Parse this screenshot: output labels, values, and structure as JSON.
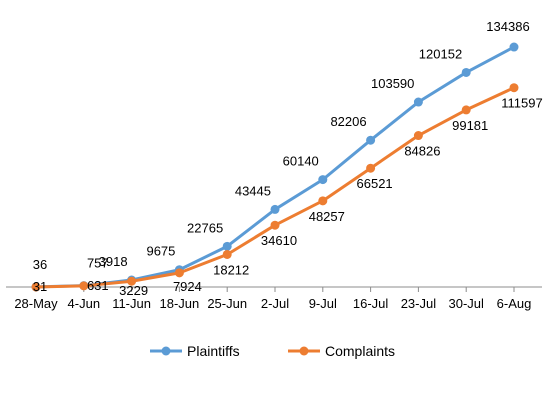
{
  "chart_data": {
    "type": "line",
    "categories": [
      "28-May",
      "4-Jun",
      "11-Jun",
      "18-Jun",
      "25-Jun",
      "2-Jul",
      "9-Jul",
      "16-Jul",
      "23-Jul",
      "30-Jul",
      "6-Aug"
    ],
    "series": [
      {
        "name": "Plaintiffs",
        "color": "#5B9BD5",
        "values": [
          36,
          757,
          3918,
          9675,
          22765,
          43445,
          60140,
          82206,
          103590,
          120152,
          134386
        ]
      },
      {
        "name": "Complaints",
        "color": "#ED7D31",
        "values": [
          31,
          631,
          3229,
          7924,
          18212,
          34610,
          48257,
          66521,
          84826,
          99181,
          111597
        ]
      }
    ],
    "ylim": [
      0,
      140000
    ],
    "grid": false,
    "legend": "bottom"
  }
}
